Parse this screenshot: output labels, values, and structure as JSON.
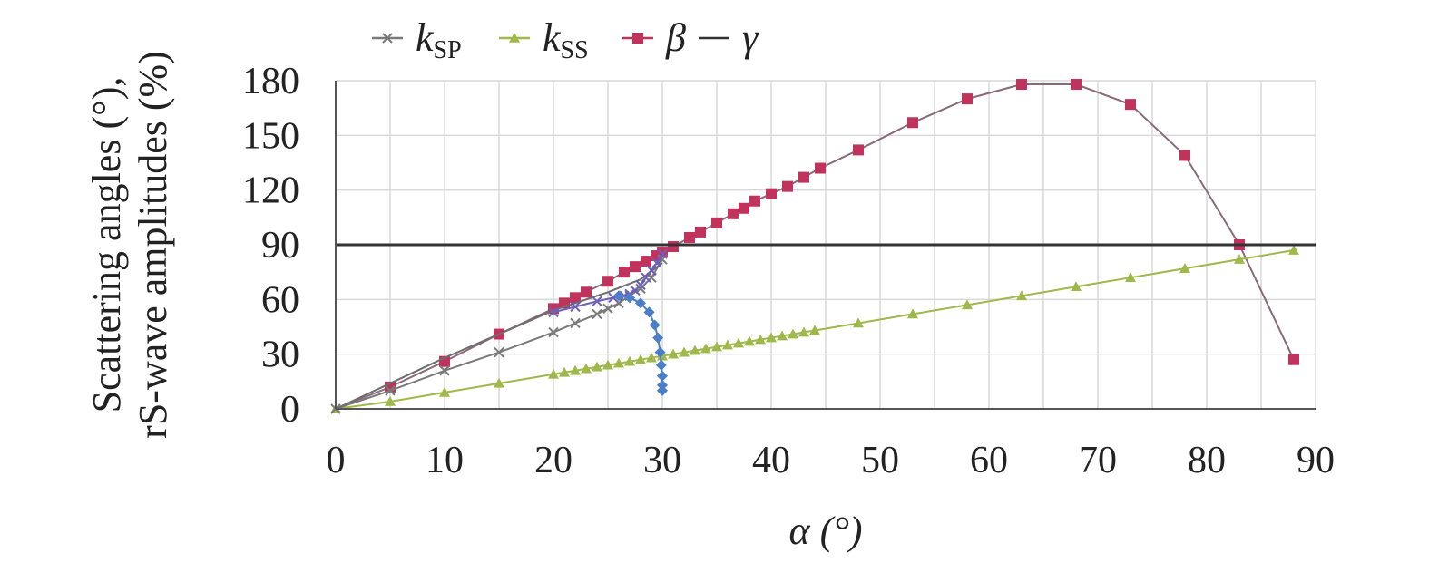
{
  "chart_data": {
    "type": "line",
    "title": "",
    "xlabel": "α (°)",
    "ylabel_line1": "Scattering angles (°),",
    "ylabel_line2": "rS-wave amplitudes (%)",
    "xlim": [
      0,
      90
    ],
    "ylim": [
      0,
      180
    ],
    "xticks": [
      "0",
      "10",
      "20",
      "30",
      "40",
      "50",
      "60",
      "70",
      "80",
      "90"
    ],
    "yticks": [
      "0",
      "30",
      "60",
      "90",
      "120",
      "150",
      "180"
    ],
    "grid": true,
    "legend_placement": "top",
    "legend": [
      {
        "key": "ksp",
        "main": "k",
        "sub": "SP"
      },
      {
        "key": "kss",
        "main": "k",
        "sub": "SS"
      },
      {
        "key": "beta",
        "main": "β",
        "sub": ""
      },
      {
        "key": "gamma",
        "main": "γ",
        "sub": ""
      }
    ],
    "colors": {
      "ksp": "#7a7a7a",
      "kss": "#9fb84a",
      "beta": "#c0335d",
      "gamma": "#333333",
      "gray_line": "#6e6e6e",
      "blue_branch": "#4a7fc8",
      "purple_branch": "#6d5fb8",
      "grid": "#d9d9d9"
    },
    "series": [
      {
        "key": "beta",
        "marker": "square",
        "x": [
          0,
          5,
          10,
          15,
          20,
          21,
          22,
          23,
          25,
          26.5,
          27.5,
          28.5,
          29.5,
          30,
          31,
          32.5,
          33.5,
          35,
          36.5,
          37.5,
          38.5,
          40,
          41.5,
          43,
          44.5,
          48,
          53,
          58,
          63,
          68,
          73,
          78,
          83,
          88
        ],
        "y": [
          0,
          12,
          26,
          41,
          55,
          58,
          61,
          64,
          70,
          75,
          78,
          81,
          84,
          86,
          89,
          94,
          97,
          102,
          107,
          110,
          114,
          118,
          122,
          127,
          132,
          142,
          157,
          170,
          178,
          178,
          167,
          139,
          90,
          27
        ]
      },
      {
        "key": "kss",
        "marker": "triangle",
        "x": [
          0,
          5,
          10,
          15,
          20,
          21,
          22,
          23,
          24,
          25,
          26,
          27,
          28,
          29,
          30,
          31,
          32,
          33,
          34,
          35,
          36,
          37,
          38,
          39,
          40,
          41,
          42,
          43,
          44,
          48,
          53,
          58,
          63,
          68,
          73,
          78,
          83,
          88
        ],
        "y": [
          0,
          4,
          9,
          14,
          19,
          20,
          21,
          22,
          23,
          24,
          25,
          26,
          27,
          28,
          29,
          30,
          31,
          32,
          33,
          34,
          35,
          36,
          37,
          38,
          39,
          40,
          41,
          42,
          43,
          47,
          52,
          57,
          62,
          67,
          72,
          77,
          82,
          87
        ]
      },
      {
        "key": "ksp",
        "marker": "x",
        "x": [
          0,
          5,
          10,
          15,
          20,
          22,
          24,
          25,
          26,
          27,
          28,
          29,
          30
        ],
        "y": [
          0,
          10,
          21,
          31,
          42,
          47,
          52,
          55,
          58,
          62,
          66,
          72,
          82
        ]
      },
      {
        "key": "gray_line",
        "marker": "none",
        "x": [
          0,
          10,
          20,
          25,
          28,
          30
        ],
        "y": [
          0,
          28,
          54,
          64,
          71,
          80
        ]
      },
      {
        "key": "purple_branch",
        "marker": "x",
        "x": [
          20,
          22,
          24,
          25.5,
          26.5,
          27,
          27.5,
          28,
          28.5,
          29,
          29.5,
          30
        ],
        "y": [
          53,
          56,
          59,
          61,
          62,
          63,
          65,
          68,
          72,
          76,
          80,
          85
        ]
      },
      {
        "key": "blue_branch",
        "marker": "diamond",
        "x": [
          26,
          27,
          28,
          28.8,
          29.3,
          29.6,
          29.8,
          29.9,
          30,
          30,
          30
        ],
        "y": [
          62,
          61,
          58,
          53,
          46,
          39,
          31,
          24,
          18,
          13,
          10
        ]
      },
      {
        "key": "gamma",
        "marker": "none",
        "x": [
          0,
          90
        ],
        "y": [
          90,
          90
        ]
      }
    ]
  }
}
